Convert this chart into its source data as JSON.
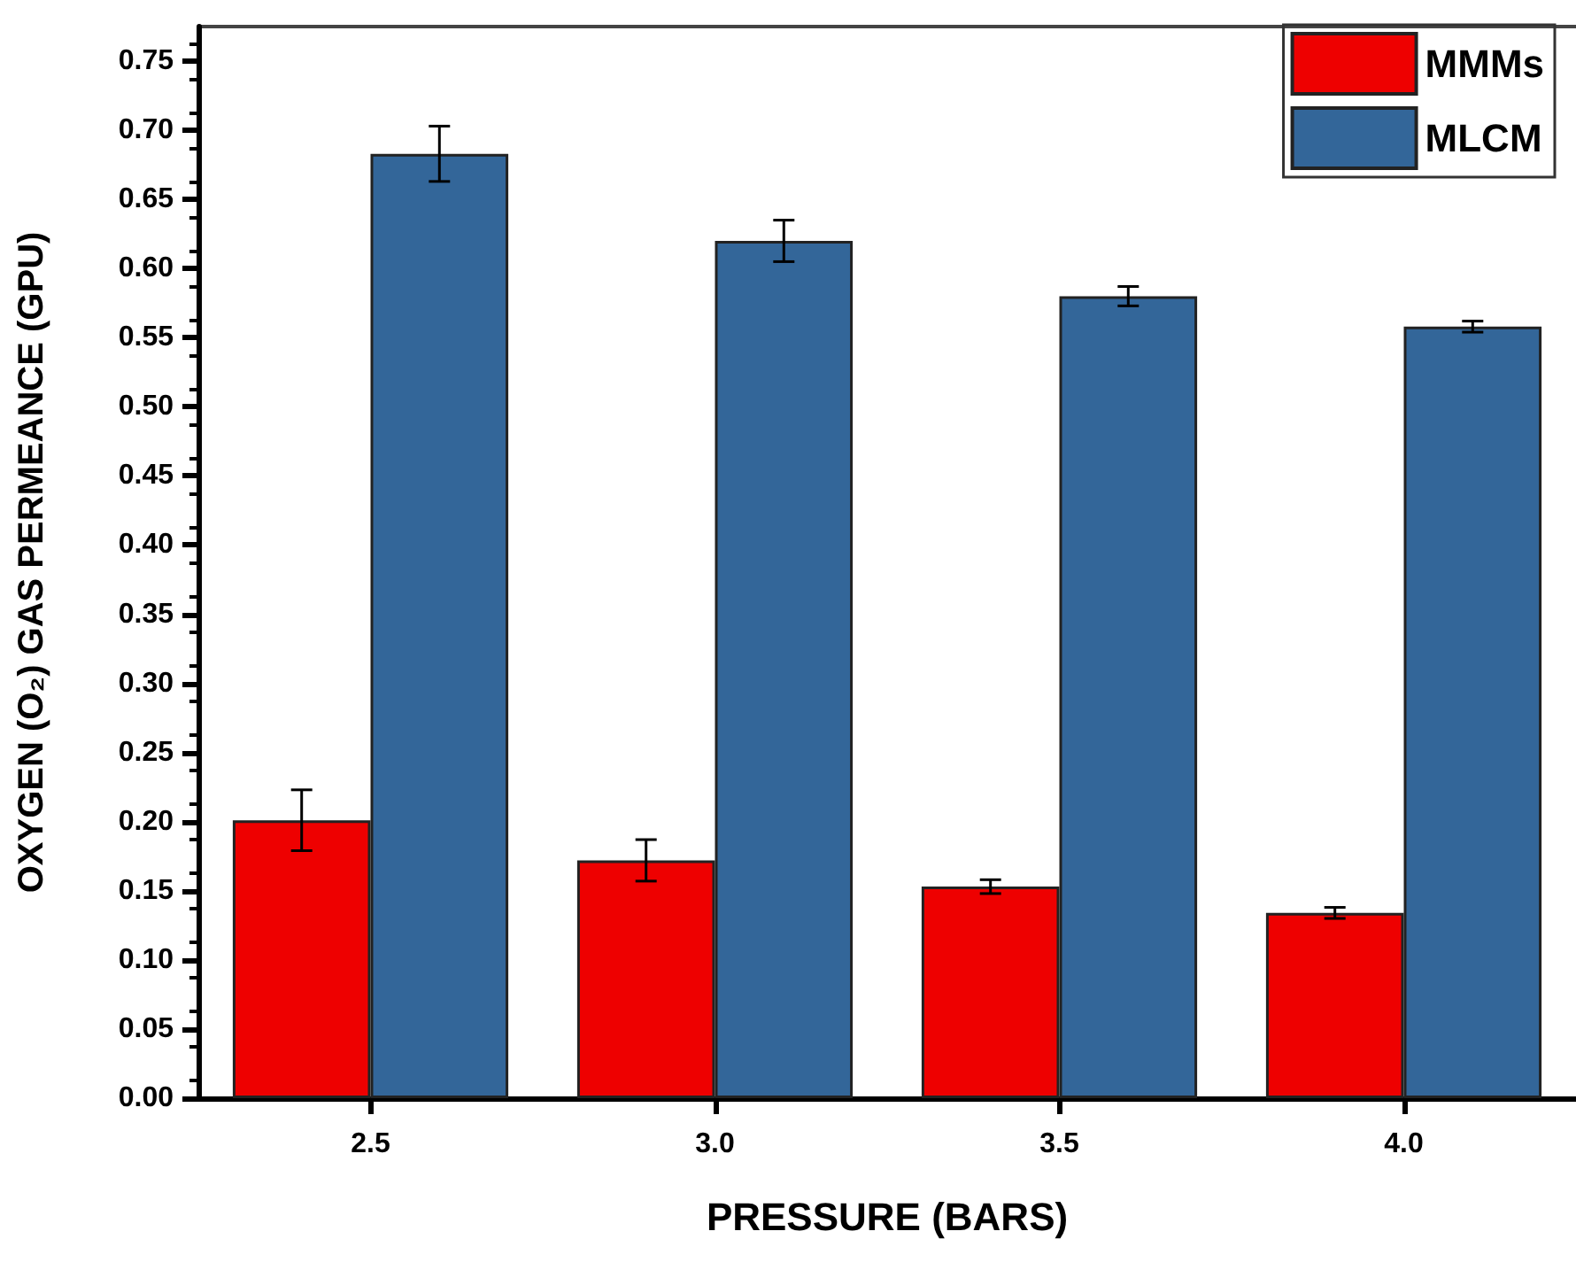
{
  "chart_data": {
    "type": "bar",
    "xlabel": "PRESSURE (BARS)",
    "ylabel": "OXYGEN (O₂) GAS PERMEANCE (GPU)",
    "categories": [
      "2.5",
      "3.0",
      "3.5",
      "4.0"
    ],
    "series": [
      {
        "name": "MMMs",
        "color": "#ee0000",
        "values": [
          0.201,
          0.172,
          0.153,
          0.134
        ],
        "errors": [
          0.022,
          0.015,
          0.005,
          0.004
        ]
      },
      {
        "name": "MLCM",
        "color": "#336699",
        "values": [
          0.683,
          0.62,
          0.58,
          0.558
        ],
        "errors": [
          0.02,
          0.015,
          0.007,
          0.004
        ]
      }
    ],
    "ylim": [
      0,
      0.775
    ],
    "yticks": [
      {
        "value": 0,
        "label": "0.00"
      },
      0.05,
      {
        "value": 0.1,
        "label": "0.10"
      },
      0.15,
      {
        "value": 0.2,
        "label": "0.20"
      },
      0.25,
      {
        "value": 0.3,
        "label": "0.30"
      },
      0.35,
      {
        "value": 0.4,
        "label": "0.40"
      },
      0.45,
      {
        "value": 0.5,
        "label": "0.50"
      },
      0.55,
      {
        "value": 0.6,
        "label": "0.60"
      },
      0.65,
      {
        "value": 0.7,
        "label": "0.70"
      },
      0.75
    ],
    "grid": false,
    "legend": "top right"
  }
}
